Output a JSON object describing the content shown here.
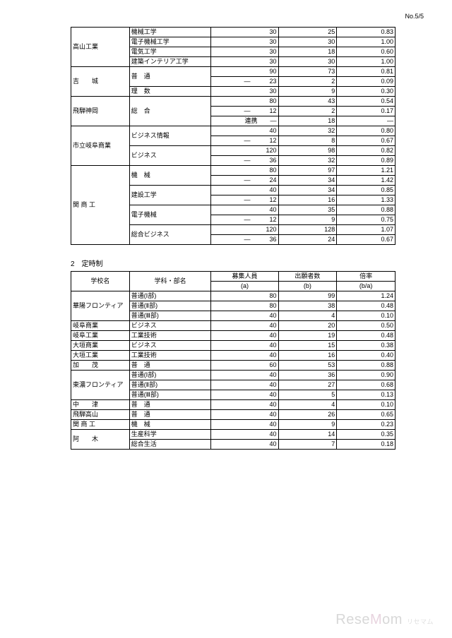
{
  "page_no": "No.5/5",
  "watermark": "ReseMom",
  "section2_label": "2　定時制",
  "headers": {
    "school": "学校名",
    "dept": "学科・部名",
    "a": "募集人員\n(a)",
    "b": "出願者数\n(b)",
    "r": "倍率\n(b/a)"
  },
  "table1": {
    "columns": [
      "school",
      "dept",
      "a",
      "b",
      "r"
    ],
    "rows": [
      {
        "school": "高山工業",
        "dept": "機械工学",
        "a": "30",
        "b": "25",
        "r": "0.83",
        "sr": 4
      },
      {
        "dept": "電子機械工学",
        "a": "30",
        "b": "30",
        "r": "1.00"
      },
      {
        "dept": "電気工学",
        "a": "30",
        "b": "18",
        "r": "0.60"
      },
      {
        "dept": "建築インテリア工学",
        "a": "30",
        "b": "30",
        "r": "1.00"
      },
      {
        "school": "吉　　城",
        "dept": "普　通",
        "a": "90",
        "b": "73",
        "r": "0.81",
        "sr": 3,
        "dr": 2
      },
      {
        "a": "―　　　23",
        "b": "2",
        "r": "0.09"
      },
      {
        "dept": "理　数",
        "a": "30",
        "b": "9",
        "r": "0.30"
      },
      {
        "school": "飛騨神岡",
        "dept": "総　合",
        "a": "80",
        "b": "43",
        "r": "0.54",
        "sr": 3,
        "dr": 3
      },
      {
        "a": "―　　　12",
        "b": "2",
        "r": "0.17"
      },
      {
        "a": "連携　　―",
        "b": "18",
        "r": "―"
      },
      {
        "school": "市立岐阜商業",
        "dept": "ビジネス情報",
        "a": "40",
        "b": "32",
        "r": "0.80",
        "sr": 4,
        "dr": 2
      },
      {
        "a": "―　　　12",
        "b": "8",
        "r": "0.67"
      },
      {
        "dept": "ビジネス",
        "a": "120",
        "b": "98",
        "r": "0.82",
        "dr": 2
      },
      {
        "a": "―　　　36",
        "b": "32",
        "r": "0.89"
      },
      {
        "school": "関 商 工",
        "dept": "機　械",
        "a": "80",
        "b": "97",
        "r": "1.21",
        "sr": 8,
        "dr": 2
      },
      {
        "a": "―　　　24",
        "b": "34",
        "r": "1.42"
      },
      {
        "dept": "建設工学",
        "a": "40",
        "b": "34",
        "r": "0.85",
        "dr": 2
      },
      {
        "a": "―　　　12",
        "b": "16",
        "r": "1.33"
      },
      {
        "dept": "電子機械",
        "a": "40",
        "b": "35",
        "r": "0.88",
        "dr": 2
      },
      {
        "a": "―　　　12",
        "b": "9",
        "r": "0.75"
      },
      {
        "dept": "総合ビジネス",
        "a": "120",
        "b": "128",
        "r": "1.07",
        "dr": 2
      },
      {
        "a": "―　　　36",
        "b": "24",
        "r": "0.67"
      }
    ]
  },
  "table2": {
    "columns": [
      "school",
      "dept",
      "a",
      "b",
      "r"
    ],
    "rows": [
      {
        "school": "華陽フロンティア",
        "dept": "普通(Ⅰ部)",
        "a": "80",
        "b": "99",
        "r": "1.24",
        "sr": 3
      },
      {
        "dept": "普通(Ⅱ部)",
        "a": "80",
        "b": "38",
        "r": "0.48"
      },
      {
        "dept": "普通(Ⅲ部)",
        "a": "40",
        "b": "4",
        "r": "0.10"
      },
      {
        "school": "岐阜商業",
        "dept": "ビジネス",
        "a": "40",
        "b": "20",
        "r": "0.50"
      },
      {
        "school": "岐阜工業",
        "dept": "工業技術",
        "a": "40",
        "b": "19",
        "r": "0.48"
      },
      {
        "school": "大垣商業",
        "dept": "ビジネス",
        "a": "40",
        "b": "15",
        "r": "0.38"
      },
      {
        "school": "大垣工業",
        "dept": "工業技術",
        "a": "40",
        "b": "16",
        "r": "0.40"
      },
      {
        "school": "加　　茂",
        "dept": "普　通",
        "a": "60",
        "b": "53",
        "r": "0.88"
      },
      {
        "school": "東濃フロンティア",
        "dept": "普通(Ⅰ部)",
        "a": "40",
        "b": "36",
        "r": "0.90",
        "sr": 3
      },
      {
        "dept": "普通(Ⅱ部)",
        "a": "40",
        "b": "27",
        "r": "0.68"
      },
      {
        "dept": "普通(Ⅲ部)",
        "a": "40",
        "b": "5",
        "r": "0.13"
      },
      {
        "school": "中　　津",
        "dept": "普　通",
        "a": "40",
        "b": "4",
        "r": "0.10"
      },
      {
        "school": "飛騨高山",
        "dept": "普　通",
        "a": "40",
        "b": "26",
        "r": "0.65"
      },
      {
        "school": "関 商 工",
        "dept": "機　械",
        "a": "40",
        "b": "9",
        "r": "0.23"
      },
      {
        "school": "阿　　木",
        "dept": "生産科学",
        "a": "40",
        "b": "14",
        "r": "0.35",
        "sr": 2
      },
      {
        "dept": "総合生活",
        "a": "40",
        "b": "7",
        "r": "0.18"
      }
    ]
  }
}
